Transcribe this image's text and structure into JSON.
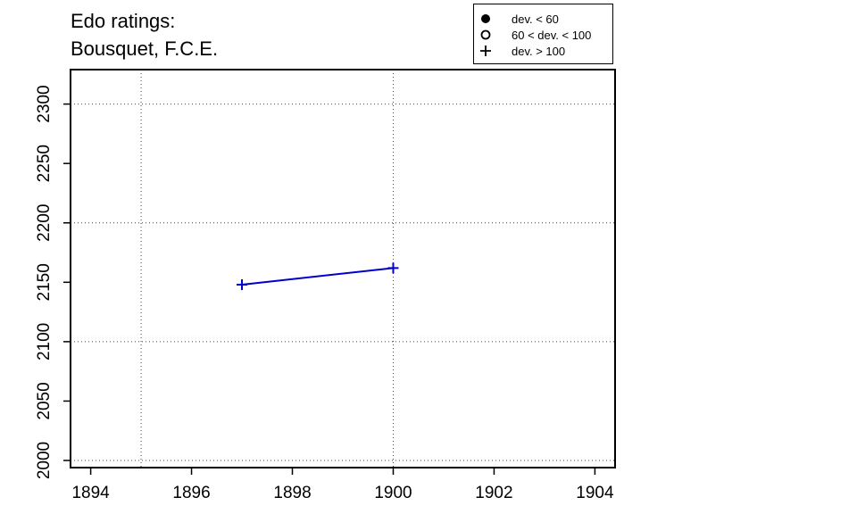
{
  "title_lines": [
    "Edo ratings:",
    "Bousquet, F.C.E."
  ],
  "legend": [
    {
      "symbol": "filled-circle-icon",
      "label": "dev. < 60"
    },
    {
      "symbol": "open-circle-icon",
      "label": "60 < dev. < 100"
    },
    {
      "symbol": "plus-icon",
      "label": "dev. > 100"
    }
  ],
  "chart_data": {
    "type": "line",
    "title": "Edo ratings: Bousquet, F.C.E.",
    "xlabel": "",
    "ylabel": "",
    "xlim": [
      1893.6,
      1904.4
    ],
    "ylim": [
      1994,
      2329
    ],
    "x_ticks": [
      1894,
      1896,
      1898,
      1900,
      1902,
      1904
    ],
    "y_ticks": [
      2000,
      2050,
      2100,
      2150,
      2200,
      2250,
      2300
    ],
    "grid_x": [
      1895,
      1900
    ],
    "grid_y": [
      2000,
      2100,
      2200,
      2300
    ],
    "grid": "dotted",
    "legend_position": "top-right",
    "series": [
      {
        "color": "#0000cc",
        "x": [
          1897,
          1900
        ],
        "y": [
          2148,
          2162
        ],
        "markers": [
          "plus",
          "plus"
        ]
      }
    ]
  }
}
